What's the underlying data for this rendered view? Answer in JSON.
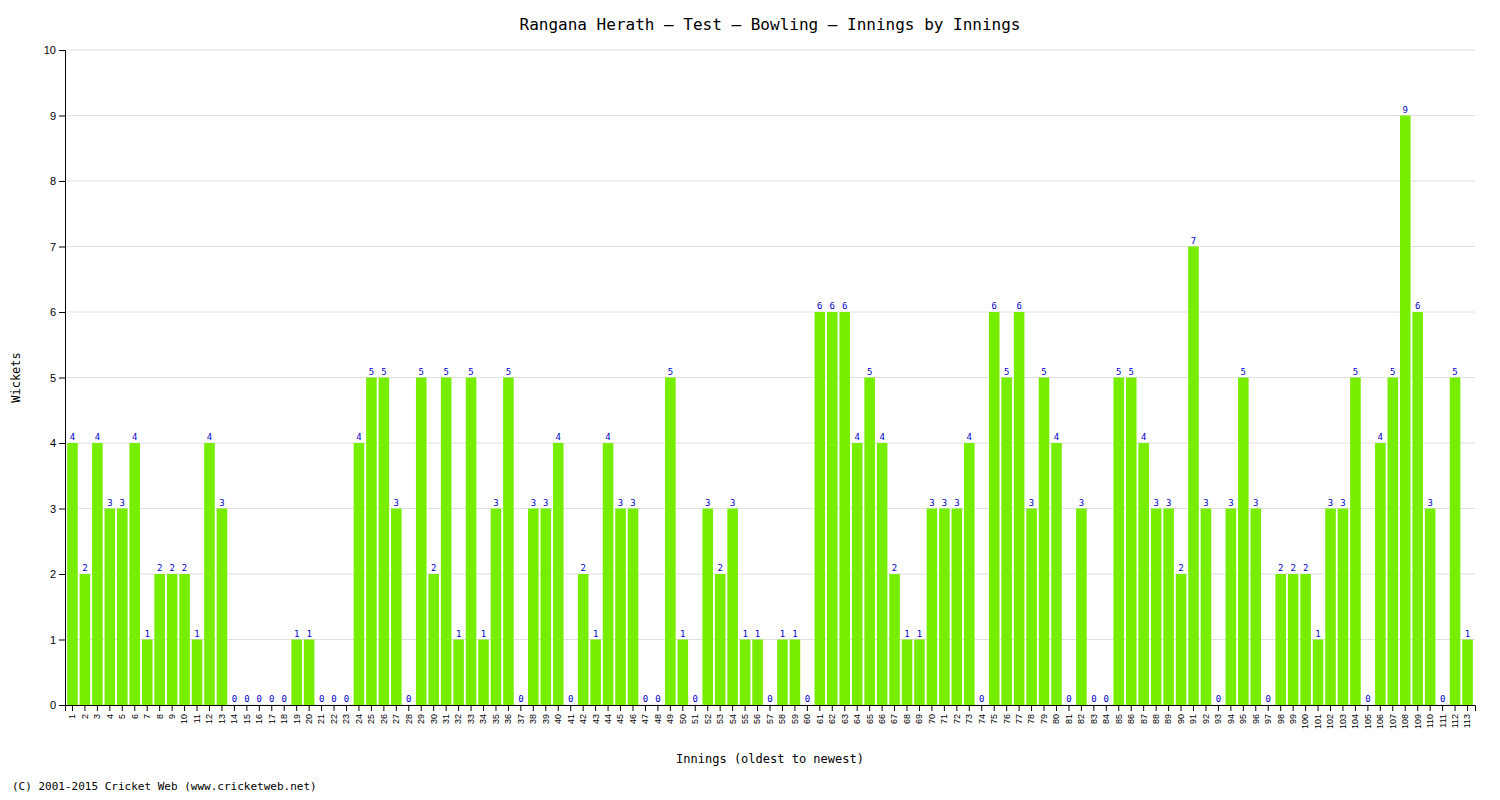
{
  "chart_data": {
    "type": "bar",
    "title": "Rangana Herath – Test – Bowling – Innings by Innings",
    "xlabel": "Innings (oldest to newest)",
    "ylabel": "Wickets",
    "footer": "(C) 2001-2015 Cricket Web (www.cricketweb.net)",
    "color": "#77ee00",
    "ylim": [
      0,
      10
    ],
    "yticks": [
      0,
      1,
      2,
      3,
      4,
      5,
      6,
      7,
      8,
      9,
      10
    ],
    "grid": true,
    "data_labels": true,
    "categories": [
      "1",
      "2",
      "3",
      "4",
      "5",
      "6",
      "7",
      "8",
      "9",
      "10",
      "11",
      "12",
      "13",
      "14",
      "15",
      "16",
      "17",
      "18",
      "19",
      "20",
      "21",
      "22",
      "23",
      "24",
      "25",
      "26",
      "27",
      "28",
      "29",
      "30",
      "31",
      "32",
      "33",
      "34",
      "35",
      "36",
      "37",
      "38",
      "39",
      "40",
      "41",
      "42",
      "43",
      "44",
      "45",
      "46",
      "47",
      "48",
      "49",
      "50",
      "51",
      "52",
      "53",
      "54",
      "55",
      "56",
      "57",
      "58",
      "59",
      "60",
      "61",
      "62",
      "63",
      "64",
      "65",
      "66",
      "67",
      "68",
      "69",
      "70",
      "71",
      "72",
      "73",
      "74",
      "75",
      "76",
      "77",
      "78",
      "79",
      "80",
      "81",
      "82",
      "83",
      "84",
      "85",
      "86",
      "87",
      "88",
      "89",
      "90",
      "91",
      "92",
      "93",
      "94",
      "95",
      "96",
      "97",
      "98",
      "99",
      "100",
      "101",
      "102",
      "103",
      "104",
      "105",
      "106",
      "107",
      "108",
      "109",
      "110",
      "111",
      "112",
      "113"
    ],
    "values": [
      4,
      2,
      4,
      3,
      3,
      4,
      1,
      2,
      2,
      2,
      1,
      4,
      3,
      0,
      0,
      0,
      0,
      0,
      1,
      1,
      0,
      0,
      0,
      4,
      5,
      5,
      3,
      0,
      5,
      2,
      5,
      1,
      5,
      1,
      3,
      5,
      0,
      3,
      3,
      4,
      0,
      2,
      1,
      4,
      3,
      3,
      0,
      0,
      5,
      1,
      0,
      3,
      2,
      3,
      1,
      1,
      0,
      1,
      1,
      0,
      6,
      6,
      6,
      4,
      5,
      4,
      2,
      1,
      1,
      3,
      3,
      3,
      4,
      0,
      6,
      5,
      6,
      3,
      5,
      4,
      0,
      3,
      0,
      0,
      5,
      5,
      4,
      3,
      3,
      2,
      7,
      3,
      0,
      3,
      5,
      3,
      0,
      2,
      2,
      2,
      1,
      3,
      3,
      5,
      0,
      4,
      5,
      9,
      6,
      3,
      0,
      5,
      1
    ]
  }
}
